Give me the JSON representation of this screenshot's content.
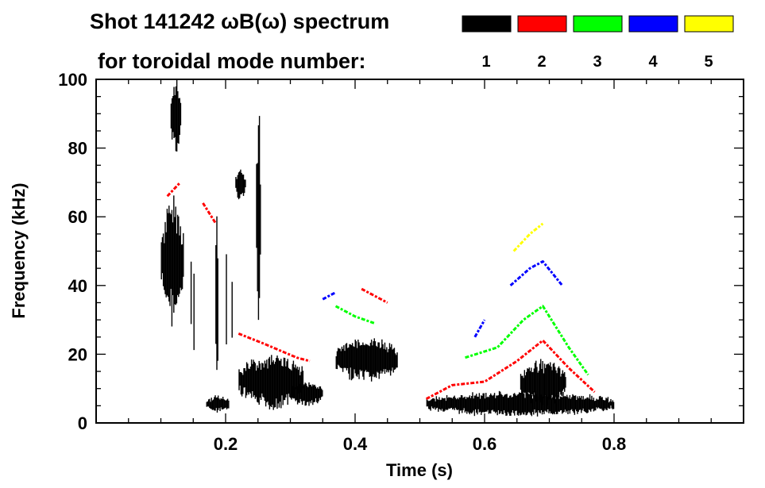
{
  "chart_data": {
    "type": "heatmap",
    "title_line1": "Shot 141242 ωB(ω) spectrum",
    "title_line2": "for toroidal mode number:",
    "xlabel": "Time (s)",
    "ylabel": "Frequency (kHz)",
    "xlim": [
      0,
      1.0
    ],
    "ylim": [
      0,
      100
    ],
    "xticks": [
      0.2,
      0.4,
      0.6,
      0.8
    ],
    "xtick_labels": [
      "0.2",
      "0.4",
      "0.6",
      "0.8"
    ],
    "yticks": [
      0,
      20,
      40,
      60,
      80,
      100
    ],
    "ytick_labels": [
      "0",
      "20",
      "40",
      "60",
      "80",
      "100"
    ],
    "legend": [
      {
        "mode": "1",
        "color": "#000000"
      },
      {
        "mode": "2",
        "color": "#ff0000"
      },
      {
        "mode": "3",
        "color": "#00ff00"
      },
      {
        "mode": "4",
        "color": "#0000ff"
      },
      {
        "mode": "5",
        "color": "#ffff00"
      }
    ],
    "regions": [
      {
        "mode": 1,
        "t": [
          0.1,
          0.135
        ],
        "f": [
          30,
          65
        ]
      },
      {
        "mode": 1,
        "t": [
          0.115,
          0.13
        ],
        "f": [
          78,
          100
        ]
      },
      {
        "mode": 1,
        "t": [
          0.215,
          0.23
        ],
        "f": [
          65,
          74
        ]
      },
      {
        "mode": 1,
        "t": [
          0.247,
          0.253
        ],
        "f": [
          25,
          100
        ]
      },
      {
        "mode": 1,
        "t": [
          0.22,
          0.32
        ],
        "f": [
          4,
          20
        ]
      },
      {
        "mode": 1,
        "t": [
          0.3,
          0.35
        ],
        "f": [
          5,
          12
        ]
      },
      {
        "mode": 1,
        "t": [
          0.37,
          0.465
        ],
        "f": [
          12,
          25
        ]
      },
      {
        "mode": 1,
        "t": [
          0.17,
          0.205
        ],
        "f": [
          3,
          8
        ]
      },
      {
        "mode": 1,
        "t": [
          0.51,
          0.8
        ],
        "f": [
          2,
          9
        ]
      },
      {
        "mode": 1,
        "t": [
          0.655,
          0.725
        ],
        "f": [
          5,
          18
        ]
      },
      {
        "mode": 1,
        "t": [
          0.14,
          0.21
        ],
        "f": [
          10,
          60
        ]
      }
    ],
    "ridges": [
      {
        "mode": 2,
        "t": [
          0.11,
          0.13
        ],
        "f": [
          66,
          70
        ]
      },
      {
        "mode": 2,
        "t": [
          0.165,
          0.185
        ],
        "f": [
          64,
          58
        ]
      },
      {
        "mode": 2,
        "t": [
          0.22,
          0.26,
          0.31,
          0.33
        ],
        "f": [
          26,
          23,
          19,
          18
        ]
      },
      {
        "mode": 2,
        "t": [
          0.41,
          0.43,
          0.45
        ],
        "f": [
          39,
          37,
          35
        ]
      },
      {
        "mode": 2,
        "t": [
          0.51,
          0.55,
          0.6,
          0.65,
          0.69,
          0.73,
          0.77
        ],
        "f": [
          7,
          11,
          12,
          18,
          24,
          16,
          9
        ]
      },
      {
        "mode": 3,
        "t": [
          0.37,
          0.4,
          0.43
        ],
        "f": [
          34,
          31,
          29
        ]
      },
      {
        "mode": 3,
        "t": [
          0.57,
          0.62,
          0.66,
          0.69,
          0.73,
          0.76
        ],
        "f": [
          19,
          22,
          30,
          34,
          22,
          14
        ]
      },
      {
        "mode": 4,
        "t": [
          0.35,
          0.37
        ],
        "f": [
          36,
          38
        ]
      },
      {
        "mode": 4,
        "t": [
          0.585,
          0.6
        ],
        "f": [
          25,
          30
        ]
      },
      {
        "mode": 4,
        "t": [
          0.64,
          0.67,
          0.69,
          0.72
        ],
        "f": [
          40,
          45,
          47,
          40
        ]
      },
      {
        "mode": 5,
        "t": [
          0.645,
          0.67,
          0.69
        ],
        "f": [
          50,
          55,
          58
        ]
      }
    ]
  }
}
